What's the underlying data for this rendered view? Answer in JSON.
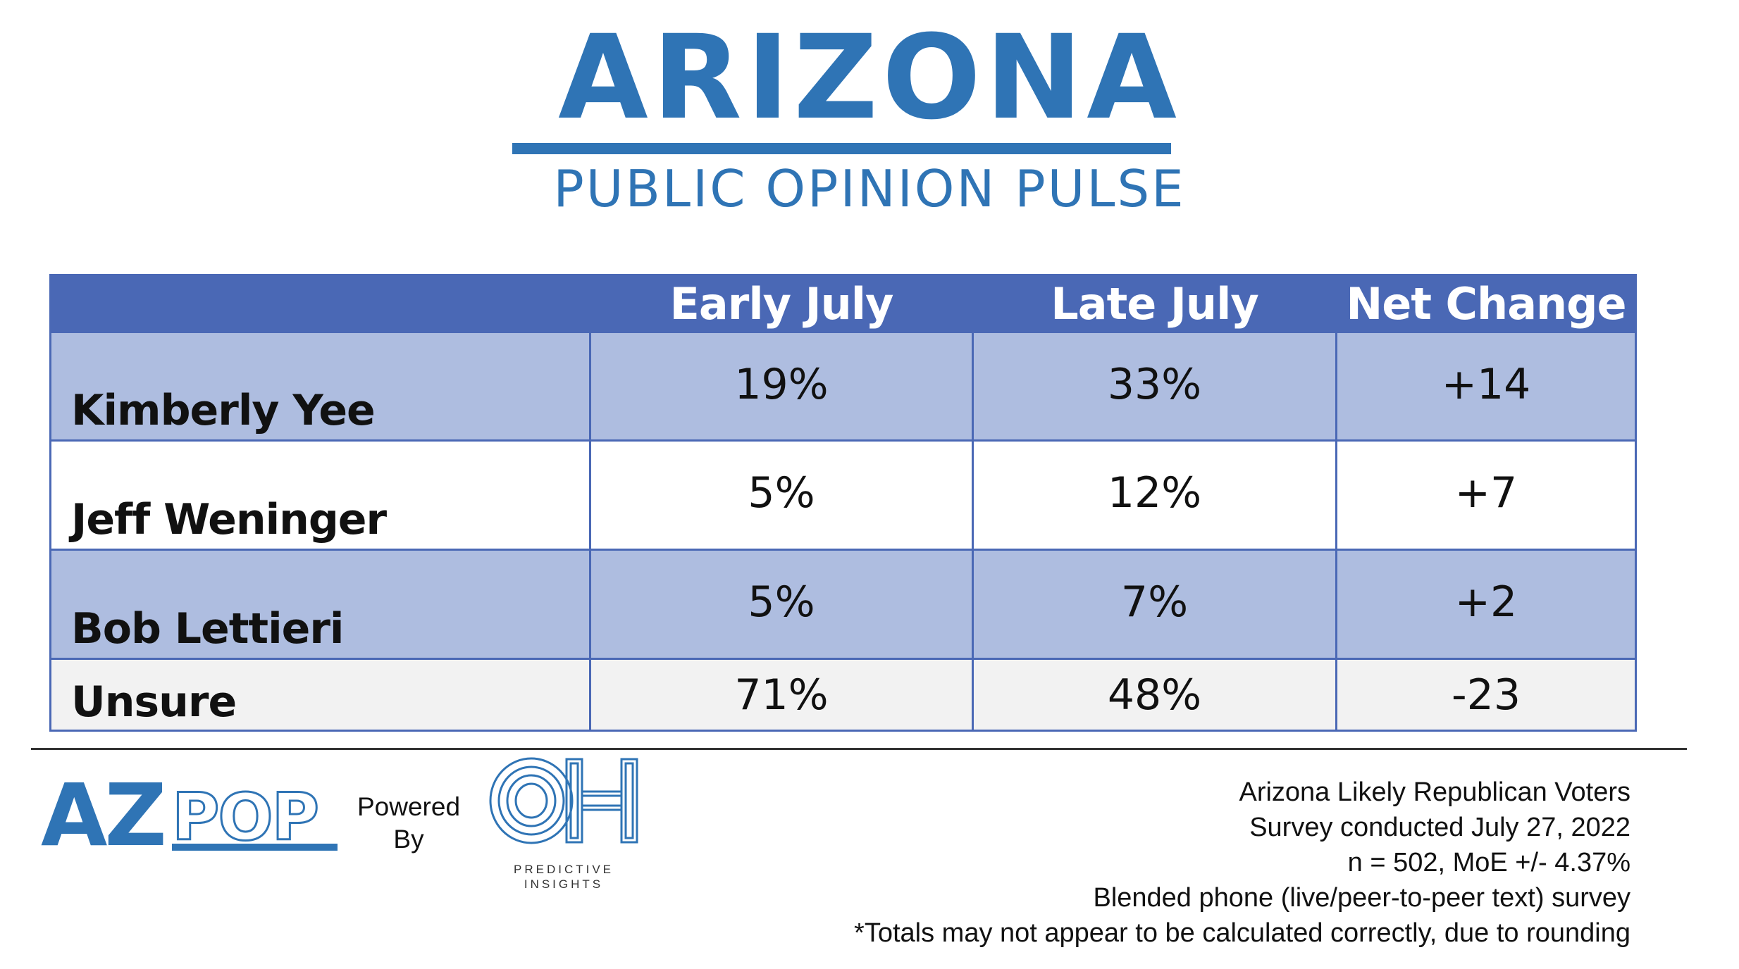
{
  "header": {
    "title": "ARIZONA",
    "subtitle": "PUBLIC OPINION PULSE"
  },
  "colors": {
    "brand_blue": "#2f74b5",
    "table_header": "#4a68b5",
    "row_band": "#aebde0",
    "row_pale": "#f2f2f2"
  },
  "chart_data": {
    "type": "table",
    "columns": [
      "",
      "Early July",
      "Late July",
      "Net Change"
    ],
    "rows": [
      {
        "name": "Kimberly Yee",
        "early_july": "19%",
        "late_july": "33%",
        "net_change": "+14"
      },
      {
        "name": "Jeff Weninger",
        "early_july": "5%",
        "late_july": "12%",
        "net_change": "+7"
      },
      {
        "name": "Bob Lettieri",
        "early_july": "5%",
        "late_july": "7%",
        "net_change": "+2"
      },
      {
        "name": "Unsure",
        "early_july": "71%",
        "late_july": "48%",
        "net_change": "-23"
      }
    ]
  },
  "footer": {
    "azpop_logo": {
      "left": "AZ",
      "right": "POP"
    },
    "powered_by": [
      "Powered",
      "By"
    ],
    "oh_logo": {
      "mark": "OH",
      "caption": [
        "PREDICTIVE",
        "INSIGHTS"
      ]
    },
    "notes": [
      "Arizona Likely Republican Voters",
      "Survey conducted July 27, 2022",
      "n = 502, MoE +/- 4.37%",
      "Blended phone (live/peer-to-peer text) survey",
      "*Totals may not appear to be calculated correctly, due to rounding"
    ]
  }
}
